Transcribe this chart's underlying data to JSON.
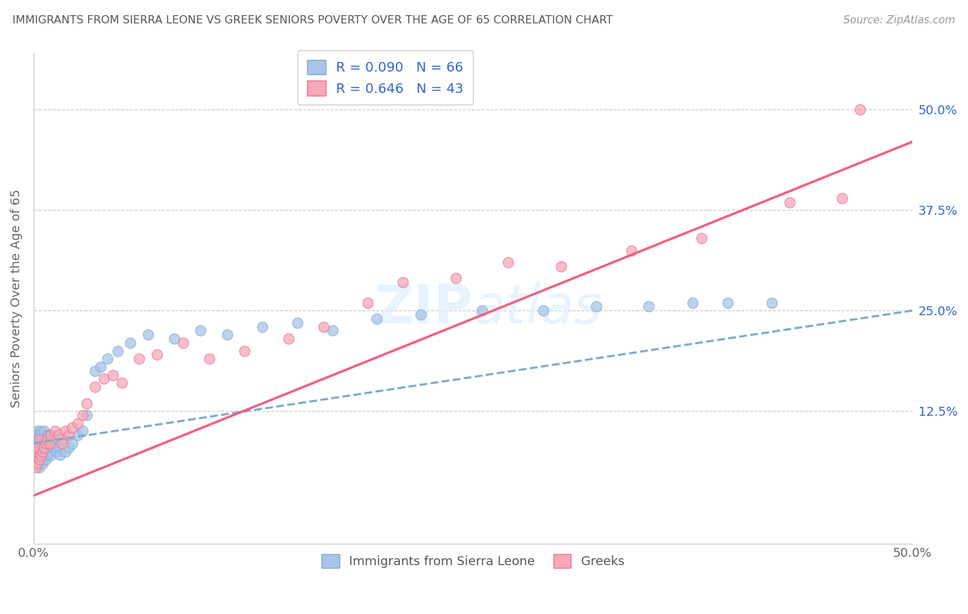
{
  "title": "IMMIGRANTS FROM SIERRA LEONE VS GREEK SENIORS POVERTY OVER THE AGE OF 65 CORRELATION CHART",
  "source": "Source: ZipAtlas.com",
  "ylabel": "Seniors Poverty Over the Age of 65",
  "ytick_values": [
    0.0,
    0.125,
    0.25,
    0.375,
    0.5
  ],
  "ytick_labels": [
    "",
    "12.5%",
    "25.0%",
    "37.5%",
    "50.0%"
  ],
  "xlim": [
    0.0,
    0.5
  ],
  "ylim": [
    -0.04,
    0.57
  ],
  "watermark": "ZIPAtlas",
  "blue_fill": "#a8c4e8",
  "blue_edge": "#7aaad0",
  "pink_fill": "#f4a8b8",
  "pink_edge": "#e87090",
  "blue_line": "#7aaad0",
  "pink_line": "#f06080",
  "title_color": "#555555",
  "tick_color": "#3366cc",
  "source_color": "#999999",
  "legend_edge": "#cccccc",
  "grid_color": "#cccccc",
  "blue_x": [
    0.001,
    0.001,
    0.001,
    0.001,
    0.002,
    0.002,
    0.002,
    0.002,
    0.002,
    0.003,
    0.003,
    0.003,
    0.003,
    0.003,
    0.004,
    0.004,
    0.004,
    0.004,
    0.005,
    0.005,
    0.005,
    0.005,
    0.006,
    0.006,
    0.006,
    0.007,
    0.007,
    0.008,
    0.008,
    0.009,
    0.009,
    0.01,
    0.01,
    0.011,
    0.012,
    0.013,
    0.014,
    0.015,
    0.016,
    0.018,
    0.02,
    0.022,
    0.025,
    0.028,
    0.03,
    0.035,
    0.038,
    0.042,
    0.048,
    0.055,
    0.065,
    0.08,
    0.095,
    0.11,
    0.13,
    0.15,
    0.17,
    0.195,
    0.22,
    0.255,
    0.29,
    0.32,
    0.35,
    0.375,
    0.395,
    0.42
  ],
  "blue_y": [
    0.065,
    0.075,
    0.085,
    0.095,
    0.06,
    0.07,
    0.08,
    0.09,
    0.1,
    0.055,
    0.065,
    0.075,
    0.085,
    0.095,
    0.065,
    0.075,
    0.085,
    0.1,
    0.06,
    0.07,
    0.08,
    0.09,
    0.065,
    0.075,
    0.1,
    0.065,
    0.09,
    0.07,
    0.095,
    0.075,
    0.095,
    0.07,
    0.09,
    0.08,
    0.085,
    0.075,
    0.08,
    0.07,
    0.09,
    0.075,
    0.08,
    0.085,
    0.095,
    0.1,
    0.12,
    0.175,
    0.18,
    0.19,
    0.2,
    0.21,
    0.22,
    0.215,
    0.225,
    0.22,
    0.23,
    0.235,
    0.225,
    0.24,
    0.245,
    0.25,
    0.25,
    0.255,
    0.255,
    0.26,
    0.26,
    0.26
  ],
  "pink_x": [
    0.001,
    0.001,
    0.002,
    0.002,
    0.003,
    0.003,
    0.004,
    0.005,
    0.006,
    0.007,
    0.008,
    0.009,
    0.01,
    0.012,
    0.014,
    0.016,
    0.018,
    0.02,
    0.022,
    0.025,
    0.028,
    0.03,
    0.035,
    0.04,
    0.045,
    0.05,
    0.06,
    0.07,
    0.085,
    0.1,
    0.12,
    0.145,
    0.165,
    0.19,
    0.21,
    0.24,
    0.27,
    0.3,
    0.34,
    0.38,
    0.43,
    0.46,
    0.47
  ],
  "pink_y": [
    0.055,
    0.075,
    0.06,
    0.08,
    0.065,
    0.09,
    0.07,
    0.075,
    0.08,
    0.085,
    0.09,
    0.085,
    0.095,
    0.1,
    0.095,
    0.085,
    0.1,
    0.095,
    0.105,
    0.11,
    0.12,
    0.135,
    0.155,
    0.165,
    0.17,
    0.16,
    0.19,
    0.195,
    0.21,
    0.19,
    0.2,
    0.215,
    0.23,
    0.26,
    0.285,
    0.29,
    0.31,
    0.305,
    0.325,
    0.34,
    0.385,
    0.39,
    0.5
  ],
  "blue_trendline": [
    0.0,
    0.5,
    0.085,
    0.25
  ],
  "pink_trendline": [
    0.0,
    0.5,
    0.02,
    0.46
  ]
}
